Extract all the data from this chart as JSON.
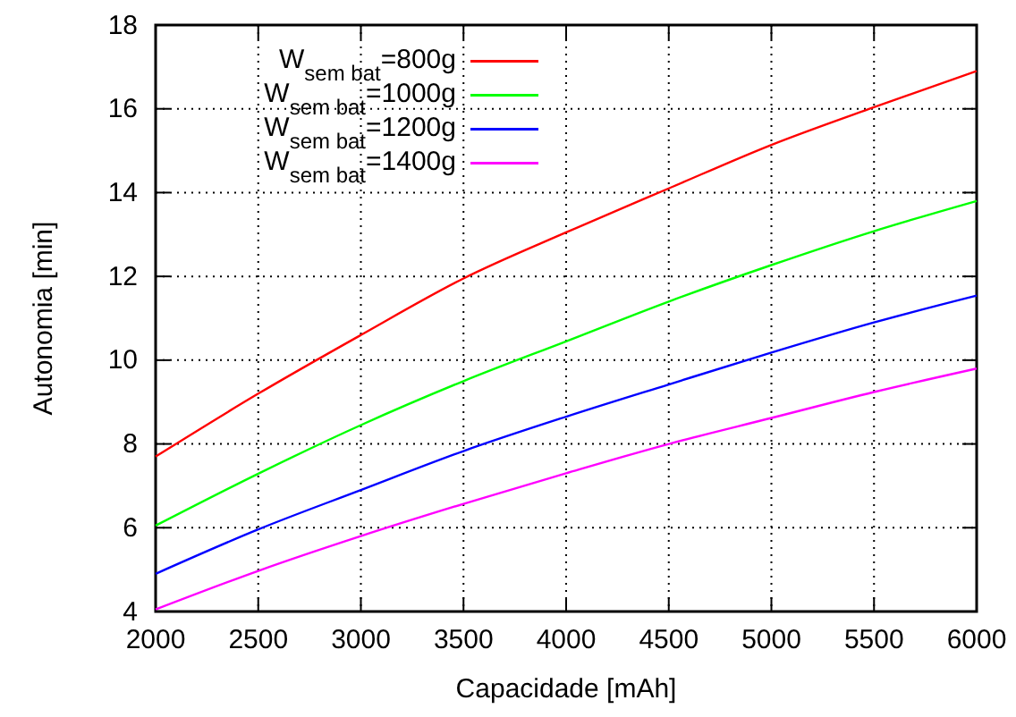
{
  "chart_data": {
    "type": "line",
    "xlabel": "Capacidade [mAh]",
    "ylabel": "Autonomia [min]",
    "x": [
      2000,
      2500,
      3000,
      3500,
      4000,
      4500,
      5000,
      5500,
      6000
    ],
    "xlim": [
      2000,
      6000
    ],
    "xticks": [
      2000,
      2500,
      3000,
      3500,
      4000,
      4500,
      5000,
      5500,
      6000
    ],
    "ylim": [
      4,
      18
    ],
    "yticks": [
      4,
      6,
      8,
      10,
      12,
      14,
      16,
      18
    ],
    "grid": true,
    "legend": "top left",
    "line_style": "solid",
    "marker": "none",
    "series": [
      {
        "name": "W$_{sem bat}$=800g",
        "color": "#ff0000",
        "values": [
          7.7,
          9.2,
          10.6,
          11.95,
          13.05,
          14.1,
          15.14,
          16.04,
          16.9
        ]
      },
      {
        "name": "W$_{sem bat}$=1000g",
        "color": "#00ff00",
        "values": [
          6.05,
          7.29,
          8.45,
          9.5,
          10.45,
          11.4,
          12.27,
          13.08,
          13.8
        ]
      },
      {
        "name": "W$_{sem bat}$=1200g",
        "color": "#0000ff",
        "values": [
          4.9,
          5.96,
          6.9,
          7.83,
          8.65,
          9.42,
          10.18,
          10.9,
          11.54
        ]
      },
      {
        "name": "W$_{sem bat}$=1400g",
        "color": "#ff00ff",
        "values": [
          4.05,
          4.97,
          5.8,
          6.57,
          7.3,
          8.0,
          8.62,
          9.24,
          9.8
        ]
      }
    ]
  }
}
